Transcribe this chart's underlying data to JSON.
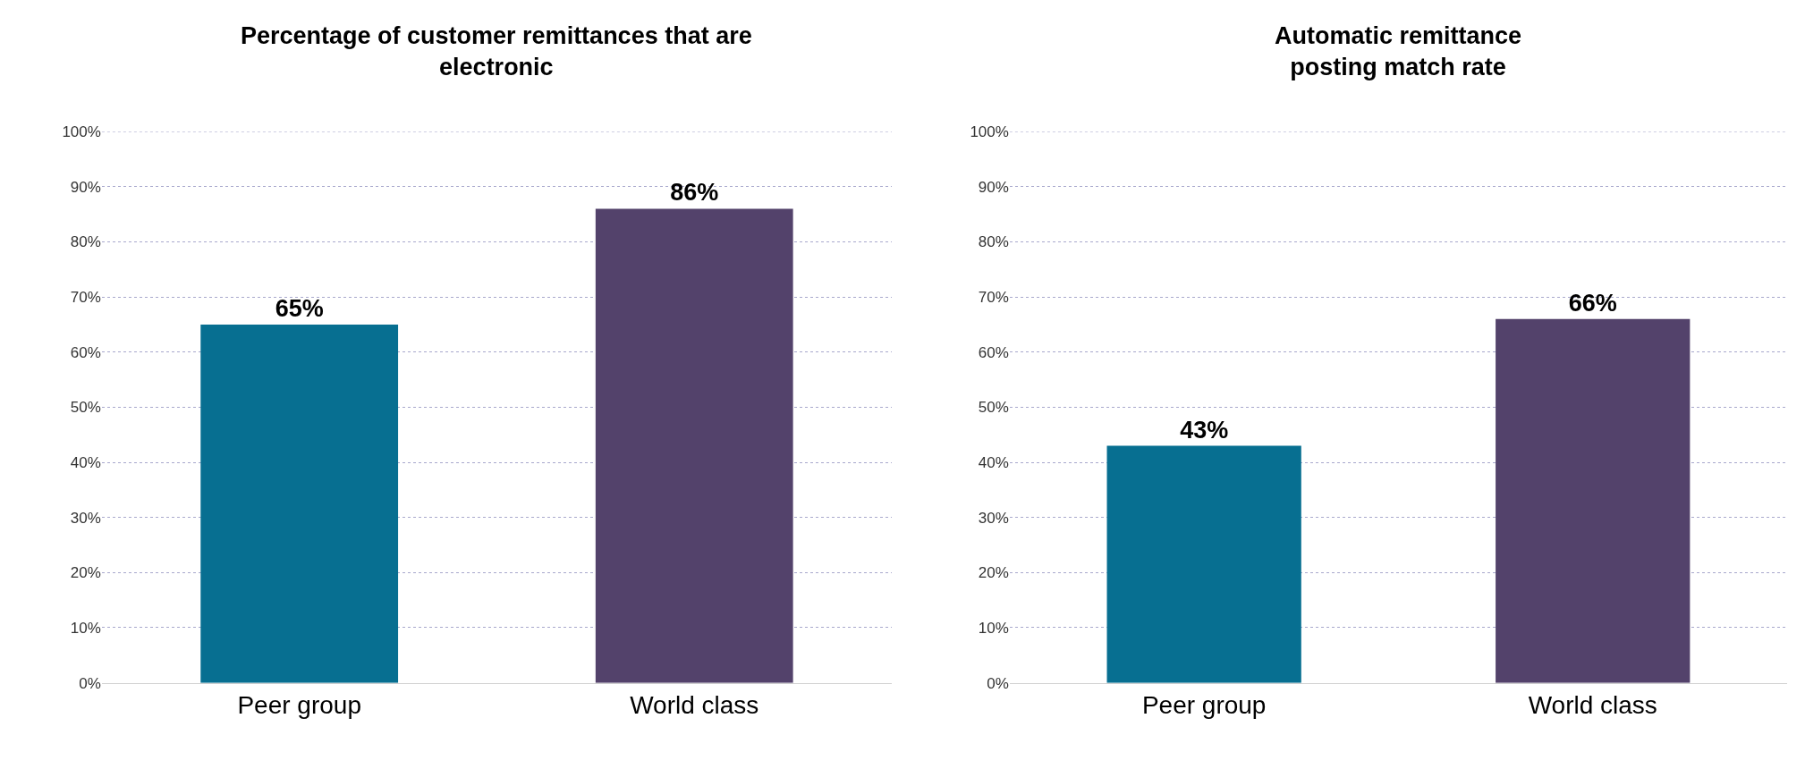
{
  "chart_data": [
    {
      "type": "bar",
      "title": "Percentage of customer remittances that are electronic",
      "categories": [
        "Peer group",
        "World class"
      ],
      "values": [
        65,
        86
      ],
      "colors": [
        "#076f91",
        "#53426b"
      ],
      "value_labels": [
        "65%",
        "86%"
      ],
      "ylim": [
        0,
        100
      ],
      "yticks": [
        {
          "value": 0,
          "label": "0%"
        },
        {
          "value": 10,
          "label": "10%"
        },
        {
          "value": 20,
          "label": "20%"
        },
        {
          "value": 30,
          "label": "30%"
        },
        {
          "value": 40,
          "label": "40%"
        },
        {
          "value": 50,
          "label": "50%"
        },
        {
          "value": 60,
          "label": "60%"
        },
        {
          "value": 70,
          "label": "70%"
        },
        {
          "value": 80,
          "label": "80%"
        },
        {
          "value": 90,
          "label": "90%"
        },
        {
          "value": 100,
          "label": "100%"
        }
      ],
      "grid": "y"
    },
    {
      "type": "bar",
      "title": "Automatic remittance posting match rate",
      "categories": [
        "Peer group",
        "World class"
      ],
      "values": [
        43,
        66
      ],
      "colors": [
        "#076f91",
        "#53426b"
      ],
      "value_labels": [
        "43%",
        "66%"
      ],
      "ylim": [
        0,
        100
      ],
      "yticks": [
        {
          "value": 0,
          "label": "0%"
        },
        {
          "value": 10,
          "label": "10%"
        },
        {
          "value": 20,
          "label": "20%"
        },
        {
          "value": 30,
          "label": "30%"
        },
        {
          "value": 40,
          "label": "40%"
        },
        {
          "value": 50,
          "label": "50%"
        },
        {
          "value": 60,
          "label": "60%"
        },
        {
          "value": 70,
          "label": "70%"
        },
        {
          "value": 80,
          "label": "80%"
        },
        {
          "value": 90,
          "label": "90%"
        },
        {
          "value": 100,
          "label": "100%"
        }
      ],
      "grid": "y"
    }
  ]
}
